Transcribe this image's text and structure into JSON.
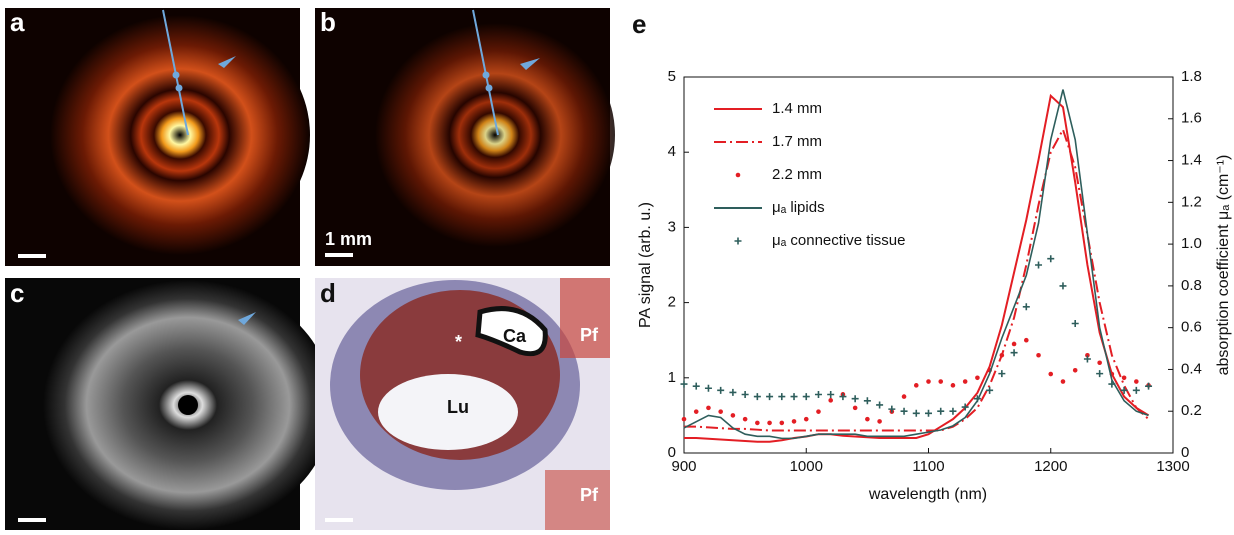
{
  "panels": [
    {
      "label": "a"
    },
    {
      "label": "b",
      "scale": "1 mm"
    },
    {
      "label": "c"
    },
    {
      "label": "d",
      "annotations": [
        "*",
        "Ca",
        "Lu",
        "Pf",
        "Pf"
      ]
    }
  ],
  "chart_data": {
    "type": "line",
    "panel_label": "e",
    "x_label": "wavelength (nm)",
    "y_label": "PA signal (arb. u.)",
    "y2_label": "absorption coefficient μₐ (cm⁻¹)",
    "x": [
      900,
      910,
      920,
      930,
      940,
      950,
      960,
      970,
      980,
      990,
      1000,
      1010,
      1020,
      1030,
      1040,
      1050,
      1060,
      1070,
      1080,
      1090,
      1100,
      1110,
      1120,
      1130,
      1140,
      1150,
      1160,
      1170,
      1180,
      1190,
      1200,
      1210,
      1220,
      1230,
      1240,
      1250,
      1260,
      1270,
      1280
    ],
    "xlim": [
      900,
      1300
    ],
    "xticks": [
      900,
      1000,
      1100,
      1200,
      1300
    ],
    "ylim": [
      0,
      5
    ],
    "yticks": [
      0,
      1,
      2,
      3,
      4,
      5
    ],
    "y2lim": [
      0,
      1.8
    ],
    "y2ticks": [
      0,
      0.2,
      0.4,
      0.6,
      0.8,
      {
        "value": 1,
        "label": "1.0"
      },
      1.2,
      1.4,
      1.6,
      1.8
    ],
    "legend": "upper left",
    "series": [
      {
        "name": "1.4 mm",
        "color": "#e31e24",
        "style": "solid",
        "values": [
          0.2,
          0.2,
          0.19,
          0.18,
          0.17,
          0.16,
          0.15,
          0.15,
          0.17,
          0.2,
          0.22,
          0.25,
          0.25,
          0.23,
          0.22,
          0.21,
          0.2,
          0.2,
          0.2,
          0.2,
          0.25,
          0.35,
          0.45,
          0.6,
          0.8,
          1.15,
          1.7,
          2.4,
          3.1,
          3.9,
          4.75,
          4.6,
          3.6,
          2.5,
          1.6,
          1.05,
          0.75,
          0.6,
          0.5
        ]
      },
      {
        "name": "1.7 mm",
        "color": "#e31e24",
        "style": "dashdot",
        "values": [
          0.35,
          0.35,
          0.34,
          0.33,
          0.32,
          0.32,
          0.31,
          0.3,
          0.3,
          0.3,
          0.3,
          0.3,
          0.3,
          0.3,
          0.3,
          0.3,
          0.3,
          0.3,
          0.3,
          0.3,
          0.3,
          0.3,
          0.35,
          0.45,
          0.6,
          0.9,
          1.3,
          1.8,
          2.5,
          3.3,
          4.0,
          4.3,
          3.8,
          2.9,
          2.0,
          1.3,
          0.9,
          0.6,
          0.45
        ]
      },
      {
        "name": "2.2 mm",
        "color": "#e31e24",
        "style": "dots",
        "values": [
          0.45,
          0.55,
          0.6,
          0.55,
          0.5,
          0.45,
          0.4,
          0.4,
          0.4,
          0.42,
          0.45,
          0.55,
          0.7,
          0.78,
          0.6,
          0.45,
          0.42,
          0.55,
          0.75,
          0.9,
          0.95,
          0.95,
          0.9,
          0.95,
          1.0,
          1.1,
          1.3,
          1.45,
          1.5,
          1.3,
          1.05,
          0.95,
          1.1,
          1.3,
          1.2,
          1.05,
          1.0,
          0.95,
          0.9
        ]
      },
      {
        "name": "μₐ lipids",
        "color": "#2e5e5c",
        "style": "solid",
        "axis": "y2",
        "values": [
          0.12,
          0.15,
          0.18,
          0.17,
          0.12,
          0.09,
          0.08,
          0.08,
          0.07,
          0.07,
          0.08,
          0.09,
          0.09,
          0.09,
          0.09,
          0.08,
          0.08,
          0.08,
          0.08,
          0.09,
          0.1,
          0.11,
          0.13,
          0.17,
          0.25,
          0.38,
          0.55,
          0.7,
          0.85,
          1.1,
          1.5,
          1.74,
          1.5,
          1.05,
          0.6,
          0.35,
          0.25,
          0.2,
          0.18
        ]
      },
      {
        "name": "μₐ connective tissue",
        "color": "#2e5e5c",
        "style": "plus",
        "axis": "y2",
        "values": [
          0.33,
          0.32,
          0.31,
          0.3,
          0.29,
          0.28,
          0.27,
          0.27,
          0.27,
          0.27,
          0.27,
          0.28,
          0.28,
          0.27,
          0.26,
          0.25,
          0.23,
          0.21,
          0.2,
          0.19,
          0.19,
          0.2,
          0.2,
          0.22,
          0.26,
          0.3,
          0.38,
          0.48,
          0.7,
          0.9,
          0.93,
          0.8,
          0.62,
          0.45,
          0.38,
          0.33,
          0.3,
          0.3,
          0.32
        ]
      }
    ]
  }
}
